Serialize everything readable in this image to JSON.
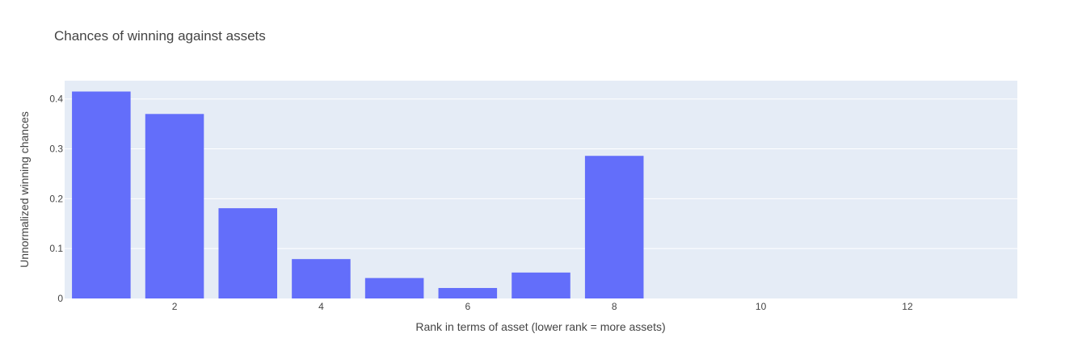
{
  "chart_data": {
    "type": "bar",
    "title": "Chances of winning against assets",
    "xlabel": "Rank in terms of asset (lower rank = more assets)",
    "ylabel": "Unnormalized winning chances",
    "x": [
      1,
      2,
      3,
      4,
      5,
      6,
      7,
      8,
      9,
      10,
      11,
      12,
      13
    ],
    "values": [
      0.415,
      0.37,
      0.181,
      0.079,
      0.041,
      0.021,
      0.052,
      0.286,
      0,
      0,
      0,
      0,
      0
    ],
    "xlim": [
      0.5,
      13.5
    ],
    "ylim": [
      0,
      0.4368
    ],
    "xticks": [
      2,
      4,
      6,
      8,
      10,
      12
    ],
    "yticks": [
      0,
      0.1,
      0.2,
      0.3,
      0.4
    ],
    "xtick_labels": [
      "2",
      "4",
      "6",
      "8",
      "10",
      "12"
    ],
    "ytick_labels": [
      "0",
      "0.1",
      "0.2",
      "0.3",
      "0.4"
    ],
    "grid": true,
    "colors": {
      "bar": "#636efa",
      "plot_bg": "#e5ecf6",
      "grid": "#ffffff",
      "text": "#444444"
    }
  }
}
